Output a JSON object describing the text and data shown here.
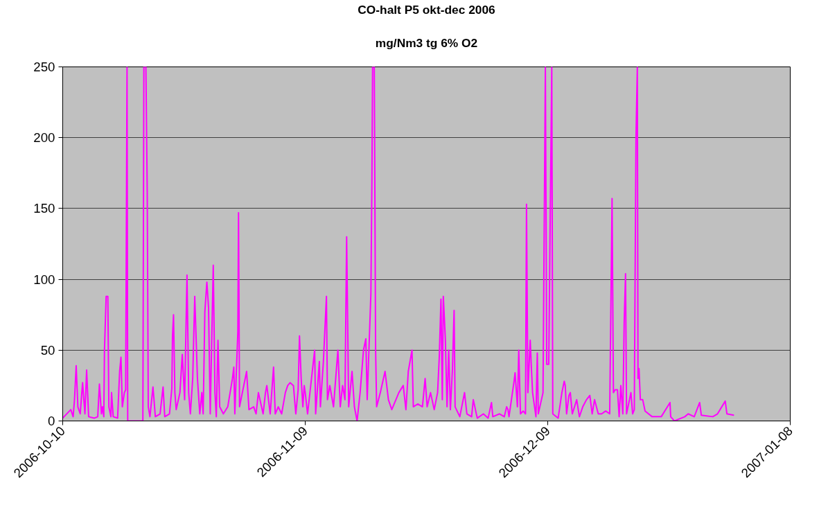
{
  "chart_data": {
    "type": "line",
    "title": "CO-halt P5 okt-dec 2006",
    "subtitle": "mg/Nm3 tg 6% O2",
    "xlim": [
      "2006-10-10",
      "2007-01-08"
    ],
    "xticks": [
      "2006-10-10",
      "2006-11-09",
      "2006-12-09",
      "2007-01-08"
    ],
    "ylim": [
      0,
      250
    ],
    "yticks": [
      0,
      50,
      100,
      150,
      200,
      250
    ],
    "grid": "y",
    "marker": "none",
    "line_style": "solid",
    "series": [
      {
        "color": "#ff00ff",
        "x": [
          "2006-10-10T00:00",
          "2006-10-11T00:00",
          "2006-10-11T07:00",
          "2006-10-11T11:00",
          "2006-10-11T16:00",
          "2006-10-11T21:00",
          "2006-10-12T04:00",
          "2006-10-12T11:00",
          "2006-10-12T18:00",
          "2006-10-12T23:00",
          "2006-10-13T05:00",
          "2006-10-13T22:00",
          "2006-10-14T08:00",
          "2006-10-14T13:00",
          "2006-10-14T19:00",
          "2006-10-14T22:00",
          "2006-10-15T02:00",
          "2006-10-15T04:00",
          "2006-10-15T09:00",
          "2006-10-15T14:00",
          "2006-10-15T17:00",
          "2006-10-15T23:00",
          "2006-10-16T01:00",
          "2006-10-16T06:00",
          "2006-10-16T19:00",
          "2006-10-17T01:00",
          "2006-10-17T05:00",
          "2006-10-17T09:00",
          "2006-10-17T15:00",
          "2006-10-17T19:00",
          "2006-10-17T23:00",
          "2006-10-18T01:00",
          "2006-10-19T22:00",
          "2006-10-20T01:00",
          "2006-10-20T07:00",
          "2006-10-20T11:00",
          "2006-10-20T14:00",
          "2006-10-20T19:00",
          "2006-10-21T04:00",
          "2006-10-21T11:00",
          "2006-10-22T01:00",
          "2006-10-22T10:00",
          "2006-10-22T15:00",
          "2006-10-23T05:00",
          "2006-10-23T12:00",
          "2006-10-23T14:00",
          "2006-10-23T17:00",
          "2006-10-23T21:00",
          "2006-10-24T01:00",
          "2006-10-24T12:00",
          "2006-10-24T19:00",
          "2006-10-25T02:00",
          "2006-10-25T09:00",
          "2006-10-25T14:00",
          "2006-10-25T19:00",
          "2006-10-26T02:00",
          "2006-10-26T08:00",
          "2006-10-26T16:00",
          "2006-10-26T23:00",
          "2006-10-27T05:00",
          "2006-10-27T09:00",
          "2006-10-27T14:00",
          "2006-10-27T20:00",
          "2006-10-28T01:00",
          "2006-10-28T06:00",
          "2006-10-28T15:00",
          "2006-10-28T20:00",
          "2006-10-29T00:00",
          "2006-10-29T05:00",
          "2006-10-29T10:00",
          "2006-10-29T21:00",
          "2006-10-30T10:00",
          "2006-10-31T00:00",
          "2006-10-31T04:00",
          "2006-10-31T07:00",
          "2006-10-31T16:00",
          "2006-10-31T18:00",
          "2006-10-31T21:00",
          "2006-11-01T18:00",
          "2006-11-02T01:00",
          "2006-11-02T15:00",
          "2006-11-02T22:00",
          "2006-11-03T05:00",
          "2006-11-03T19:00",
          "2006-11-04T02:00",
          "2006-11-04T06:00",
          "2006-11-04T16:00",
          "2006-11-05T02:00",
          "2006-11-05T07:00",
          "2006-11-05T16:00",
          "2006-11-06T02:00",
          "2006-11-06T13:00",
          "2006-11-06T20:00",
          "2006-11-07T03:00",
          "2006-11-07T13:00",
          "2006-11-07T20:00",
          "2006-11-08T03:00",
          "2006-11-08T07:00",
          "2006-11-08T12:00",
          "2006-11-08T17:00",
          "2006-11-08T21:00",
          "2006-11-09T00:00",
          "2006-11-09T07:00",
          "2006-11-09T14:00",
          "2006-11-10T04:00",
          "2006-11-10T07:00",
          "2006-11-10T18:00",
          "2006-11-10T21:00",
          "2006-11-11T06:00",
          "2006-11-11T15:00",
          "2006-11-11T18:00",
          "2006-11-12T01:00",
          "2006-11-12T12:00",
          "2006-11-13T01:00",
          "2006-11-13T08:00",
          "2006-11-13T15:00",
          "2006-11-13T22:00",
          "2006-11-14T03:00",
          "2006-11-14T09:00",
          "2006-11-14T19:00",
          "2006-11-15T02:00",
          "2006-11-15T10:00",
          "2006-11-15T19:00",
          "2006-11-16T05:00",
          "2006-11-16T12:00",
          "2006-11-16T16:00",
          "2006-11-17T03:00",
          "2006-11-17T06:00",
          "2006-11-17T08:00",
          "2006-11-17T13:00",
          "2006-11-17T17:00",
          "2006-11-17T20:00",
          "2006-11-18T07:00",
          "2006-11-18T21:00",
          "2006-11-19T07:00",
          "2006-11-19T17:00",
          "2006-11-20T14:00",
          "2006-11-21T03:00",
          "2006-11-21T11:00",
          "2006-11-21T18:00",
          "2006-11-22T05:00",
          "2006-11-22T09:00",
          "2006-11-22T22:00",
          "2006-11-23T12:00",
          "2006-11-23T20:00",
          "2006-11-24T02:00",
          "2006-11-24T12:00",
          "2006-11-24T23:00",
          "2006-11-25T09:00",
          "2006-11-25T14:00",
          "2006-11-25T19:00",
          "2006-11-25T23:00",
          "2006-11-26T02:00",
          "2006-11-26T08:00",
          "2006-11-26T13:00",
          "2006-11-26T18:00",
          "2006-11-26T23:00",
          "2006-11-27T05:00",
          "2006-11-27T10:00",
          "2006-11-27T13:00",
          "2006-11-28T03:00",
          "2006-11-28T17:00",
          "2006-11-29T00:00",
          "2006-11-29T14:00",
          "2006-11-29T19:00",
          "2006-11-30T04:00",
          "2006-11-30T07:00",
          "2006-12-01T01:00",
          "2006-12-01T15:00",
          "2006-12-02T01:00",
          "2006-12-02T05:00",
          "2006-12-03T01:00",
          "2006-12-03T15:00",
          "2006-12-03T22:00",
          "2006-12-04T02:00",
          "2006-12-04T05:00",
          "2006-12-04T20:00",
          "2006-12-04T23:00",
          "2006-12-05T06:00",
          "2006-12-05T10:00",
          "2006-12-05T15:00",
          "2006-12-05T23:00",
          "2006-12-06T06:00",
          "2006-12-06T09:00",
          "2006-12-06T13:00",
          "2006-12-06T20:00",
          "2006-12-06T23:00",
          "2006-12-07T03:00",
          "2006-12-07T13:00",
          "2006-12-07T17:00",
          "2006-12-07T20:00",
          "2006-12-08T10:00",
          "2006-12-08T17:00",
          "2006-12-08T21:00",
          "2006-12-09T03:00",
          "2006-12-09T12:00",
          "2006-12-09T15:00",
          "2006-12-10T07:00",
          "2006-12-10T18:00",
          "2006-12-11T01:00",
          "2006-12-11T04:00",
          "2006-12-11T08:00",
          "2006-12-11T15:00",
          "2006-12-11T19:00",
          "2006-12-12T01:00",
          "2006-12-12T14:00",
          "2006-12-12T22:00",
          "2006-12-13T08:00",
          "2006-12-13T19:00",
          "2006-12-14T05:00",
          "2006-12-14T12:00",
          "2006-12-14T19:00",
          "2006-12-15T06:00",
          "2006-12-15T16:00",
          "2006-12-16T04:00",
          "2006-12-16T16:00",
          "2006-12-16T23:00",
          "2006-12-17T03:00",
          "2006-12-17T08:00",
          "2006-12-17T15:00",
          "2006-12-17T20:00",
          "2006-12-18T01:00",
          "2006-12-18T07:00",
          "2006-12-18T11:00",
          "2006-12-18T15:00",
          "2006-12-18T18:00",
          "2006-12-19T07:00",
          "2006-12-19T12:00",
          "2006-12-19T17:00",
          "2006-12-19T22:00",
          "2006-12-20T02:00",
          "2006-12-20T04:00",
          "2006-12-20T07:00",
          "2006-12-20T11:00",
          "2006-12-20T18:00",
          "2006-12-21T01:00",
          "2006-12-21T22:00",
          "2006-12-23T01:00",
          "2006-12-24T03:00",
          "2006-12-24T05:00",
          "2006-12-24T16:00",
          "2006-12-25T23:00",
          "2006-12-26T09:00",
          "2006-12-27T03:00",
          "2006-12-27T19:00",
          "2006-12-28T00:00",
          "2006-12-29T10:00",
          "2006-12-30T00:00",
          "2006-12-30T23:00",
          "2006-12-31T04:00",
          "2007-01-01T01:00"
        ],
        "values": [
          2,
          8,
          3,
          15,
          39,
          10,
          5,
          27,
          5,
          36,
          3,
          2,
          3,
          26,
          5,
          10,
          3,
          50,
          88,
          88,
          10,
          3,
          20,
          3,
          2,
          35,
          45,
          10,
          20,
          22,
          250,
          0,
          0,
          250,
          250,
          160,
          10,
          3,
          24,
          3,
          5,
          24,
          3,
          5,
          23,
          60,
          75,
          20,
          8,
          20,
          47,
          15,
          103,
          20,
          5,
          30,
          88,
          30,
          5,
          20,
          5,
          77,
          98,
          80,
          5,
          110,
          20,
          3,
          57,
          10,
          5,
          10,
          30,
          38,
          5,
          63,
          147,
          10,
          35,
          8,
          10,
          5,
          20,
          5,
          20,
          25,
          5,
          38,
          5,
          10,
          5,
          20,
          25,
          27,
          25,
          5,
          22,
          60,
          30,
          10,
          25,
          20,
          5,
          20,
          50,
          5,
          42,
          10,
          42,
          88,
          15,
          25,
          10,
          50,
          10,
          25,
          15,
          130,
          10,
          35,
          10,
          0,
          20,
          50,
          58,
          15,
          90,
          170,
          250,
          250,
          50,
          10,
          20,
          35,
          15,
          8,
          20,
          25,
          8,
          35,
          50,
          10,
          12,
          10,
          30,
          10,
          20,
          8,
          20,
          45,
          86,
          15,
          88,
          58,
          10,
          50,
          8,
          36,
          78,
          10,
          3,
          20,
          5,
          3,
          15,
          5,
          2,
          5,
          2,
          13,
          3,
          5,
          3,
          10,
          8,
          3,
          28,
          34,
          10,
          50,
          5,
          7,
          5,
          153,
          20,
          57,
          40,
          20,
          3,
          48,
          5,
          20,
          250,
          40,
          40,
          250,
          5,
          2,
          20,
          28,
          25,
          5,
          18,
          20,
          5,
          15,
          3,
          10,
          15,
          18,
          5,
          15,
          5,
          5,
          7,
          5,
          157,
          20,
          22,
          22,
          3,
          25,
          5,
          70,
          104,
          5,
          20,
          5,
          8,
          200,
          250,
          30,
          37,
          15,
          15,
          7,
          3,
          3,
          13,
          3,
          0,
          3,
          5,
          3,
          13,
          4,
          3,
          5,
          14,
          5,
          4
        ]
      }
    ]
  }
}
